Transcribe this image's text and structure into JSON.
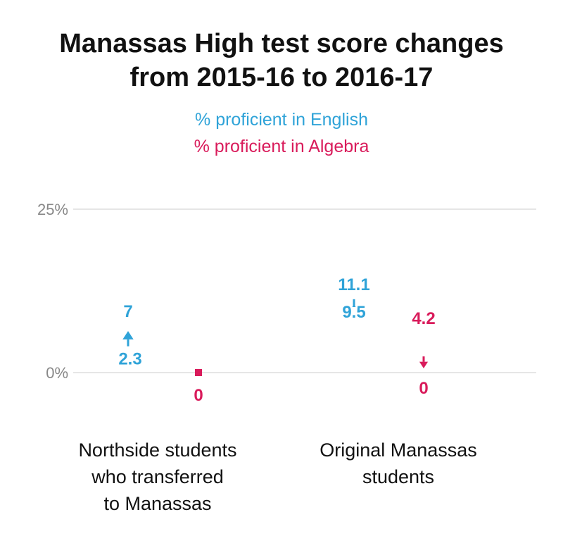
{
  "title_line1": "Manassas High test score changes",
  "title_line2": "from 2015-16 to 2016-17",
  "legend": {
    "english": "% proficient in English",
    "algebra": "% proficient in Algebra"
  },
  "colors": {
    "english": "#2fa3d8",
    "algebra": "#d91b5b",
    "grid": "#cccccc"
  },
  "chart_data": {
    "type": "scatter",
    "title": "Manassas High test score changes from 2015-16 to 2016-17",
    "ylim": [
      0,
      25
    ],
    "yticks": [
      {
        "value": 25,
        "label": "25%"
      },
      {
        "value": 0,
        "label": "0%"
      }
    ],
    "groups": [
      {
        "lines": [
          "Northside students",
          "who transferred",
          "to Manassas"
        ],
        "series": [
          {
            "name": "% proficient in English",
            "from": 2.3,
            "to": 7,
            "from_label": "2.3",
            "to_label": "7"
          },
          {
            "name": "% proficient in Algebra",
            "from": 0,
            "to": 0,
            "from_label": "0",
            "to_label": ""
          }
        ]
      },
      {
        "lines": [
          "Original Manassas",
          "students"
        ],
        "series": [
          {
            "name": "% proficient in English",
            "from": 9.5,
            "to": 11.1,
            "from_label": "9.5",
            "to_label": "11.1"
          },
          {
            "name": "% proficient in Algebra",
            "from": 4.2,
            "to": 0,
            "from_label": "4.2",
            "to_label": "0"
          }
        ]
      }
    ]
  }
}
